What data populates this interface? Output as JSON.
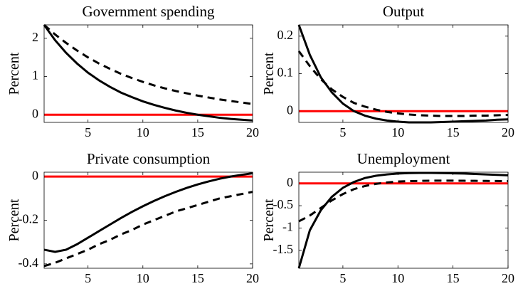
{
  "chart_data": [
    {
      "type": "line",
      "title": "Government spending",
      "ylabel": "Percent",
      "x": [
        1,
        2,
        3,
        4,
        5,
        6,
        7,
        8,
        9,
        10,
        11,
        12,
        13,
        14,
        15,
        16,
        17,
        18,
        19,
        20
      ],
      "xlim": [
        1,
        20
      ],
      "xticks": [
        5,
        10,
        15,
        20
      ],
      "ylim": [
        -0.2,
        2.35
      ],
      "yticks": [
        0,
        1,
        2
      ],
      "hline": {
        "value": 0,
        "color": "#ff0000"
      },
      "series": [
        {
          "color": "#000000",
          "dash": "solid",
          "values": [
            2.35,
            1.95,
            1.62,
            1.34,
            1.1,
            0.9,
            0.73,
            0.58,
            0.46,
            0.35,
            0.26,
            0.18,
            0.11,
            0.05,
            0.0,
            -0.04,
            -0.08,
            -0.11,
            -0.13,
            -0.15
          ]
        },
        {
          "color": "#000000",
          "dash": "dashed",
          "values": [
            2.35,
            2.1,
            1.88,
            1.68,
            1.5,
            1.34,
            1.2,
            1.07,
            0.96,
            0.86,
            0.77,
            0.69,
            0.62,
            0.56,
            0.5,
            0.45,
            0.4,
            0.36,
            0.32,
            0.28
          ]
        }
      ]
    },
    {
      "type": "line",
      "title": "Output",
      "ylabel": "Percent",
      "x": [
        1,
        2,
        3,
        4,
        5,
        6,
        7,
        8,
        9,
        10,
        11,
        12,
        13,
        14,
        15,
        16,
        17,
        18,
        19,
        20
      ],
      "xlim": [
        1,
        20
      ],
      "xticks": [
        5,
        10,
        15,
        20
      ],
      "ylim": [
        -0.03,
        0.23
      ],
      "yticks": [
        0,
        0.1,
        0.2
      ],
      "hline": {
        "value": 0,
        "color": "#ff0000"
      },
      "series": [
        {
          "color": "#000000",
          "dash": "solid",
          "values": [
            0.23,
            0.15,
            0.09,
            0.05,
            0.02,
            0.0,
            -0.012,
            -0.02,
            -0.025,
            -0.028,
            -0.03,
            -0.03,
            -0.03,
            -0.029,
            -0.028,
            -0.027,
            -0.026,
            -0.025,
            -0.023,
            -0.022
          ]
        },
        {
          "color": "#000000",
          "dash": "dashed",
          "values": [
            0.16,
            0.12,
            0.085,
            0.058,
            0.038,
            0.022,
            0.012,
            0.004,
            -0.002,
            -0.006,
            -0.009,
            -0.011,
            -0.012,
            -0.013,
            -0.013,
            -0.013,
            -0.012,
            -0.012,
            -0.011,
            -0.01
          ]
        }
      ]
    },
    {
      "type": "line",
      "title": "Private consumption",
      "ylabel": "Percent",
      "x": [
        1,
        2,
        3,
        4,
        5,
        6,
        7,
        8,
        9,
        10,
        11,
        12,
        13,
        14,
        15,
        16,
        17,
        18,
        19,
        20
      ],
      "xlim": [
        1,
        20
      ],
      "xticks": [
        5,
        10,
        15,
        20
      ],
      "ylim": [
        -0.42,
        0.02
      ],
      "yticks": [
        -0.4,
        -0.2,
        0
      ],
      "hline": {
        "value": 0,
        "color": "#ff0000"
      },
      "series": [
        {
          "color": "#000000",
          "dash": "solid",
          "values": [
            -0.335,
            -0.345,
            -0.335,
            -0.31,
            -0.28,
            -0.25,
            -0.22,
            -0.19,
            -0.162,
            -0.136,
            -0.112,
            -0.09,
            -0.07,
            -0.052,
            -0.036,
            -0.022,
            -0.01,
            0.0,
            0.008,
            0.015
          ]
        },
        {
          "color": "#000000",
          "dash": "dashed",
          "values": [
            -0.41,
            -0.395,
            -0.375,
            -0.355,
            -0.335,
            -0.31,
            -0.29,
            -0.265,
            -0.245,
            -0.22,
            -0.2,
            -0.18,
            -0.16,
            -0.145,
            -0.13,
            -0.115,
            -0.1,
            -0.09,
            -0.08,
            -0.07
          ]
        }
      ]
    },
    {
      "type": "line",
      "title": "Unemployment",
      "ylabel": "Percent",
      "x": [
        1,
        2,
        3,
        4,
        5,
        6,
        7,
        8,
        9,
        10,
        11,
        12,
        13,
        14,
        15,
        16,
        17,
        18,
        19,
        20
      ],
      "xlim": [
        1,
        20
      ],
      "xticks": [
        5,
        10,
        15,
        20
      ],
      "ylim": [
        -1.9,
        0.25
      ],
      "yticks": [
        -1.5,
        -1,
        -0.5,
        0
      ],
      "hline": {
        "value": 0,
        "color": "#ff0000"
      },
      "series": [
        {
          "color": "#000000",
          "dash": "solid",
          "values": [
            -1.9,
            -1.05,
            -0.6,
            -0.3,
            -0.1,
            0.03,
            0.12,
            0.17,
            0.2,
            0.22,
            0.23,
            0.235,
            0.235,
            0.23,
            0.225,
            0.22,
            0.21,
            0.2,
            0.19,
            0.18
          ]
        },
        {
          "color": "#000000",
          "dash": "dashed",
          "values": [
            -0.85,
            -0.72,
            -0.55,
            -0.38,
            -0.24,
            -0.13,
            -0.06,
            -0.01,
            0.02,
            0.04,
            0.05,
            0.055,
            0.06,
            0.06,
            0.06,
            0.058,
            0.056,
            0.054,
            0.052,
            0.05
          ]
        }
      ]
    }
  ]
}
